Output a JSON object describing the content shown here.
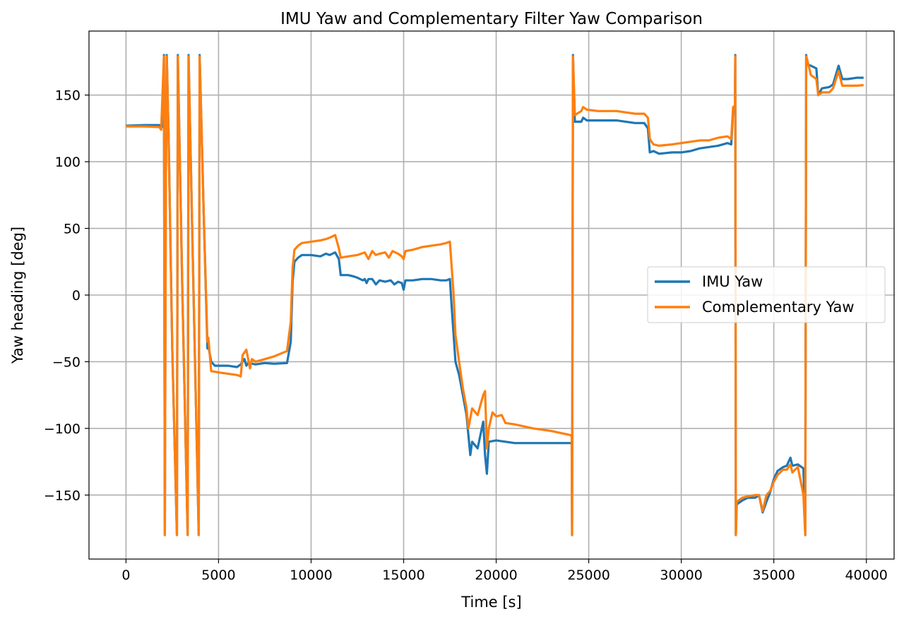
{
  "chart_data": {
    "type": "line",
    "title": "IMU Yaw and Complementary Filter Yaw Comparison",
    "xlabel": "Time [s]",
    "ylabel": "Yaw heading [deg]",
    "xlim": [
      -2000,
      41500
    ],
    "ylim": [
      -198,
      198
    ],
    "x_ticks": [
      0,
      5000,
      10000,
      15000,
      20000,
      25000,
      30000,
      35000,
      40000
    ],
    "x_tick_labels": [
      "0",
      "5000",
      "10000",
      "15000",
      "20000",
      "25000",
      "30000",
      "35000",
      "40000"
    ],
    "y_ticks": [
      -150,
      -100,
      -50,
      0,
      50,
      100,
      150
    ],
    "y_tick_labels": [
      "−150",
      "−100",
      "−50",
      "0",
      "50",
      "100",
      "150"
    ],
    "grid": true,
    "legend_position": "center-right",
    "series": [
      {
        "name": "IMU Yaw",
        "color": "#1f77b4",
        "points": [
          [
            0,
            127
          ],
          [
            1000,
            127.5
          ],
          [
            1800,
            127.5
          ],
          [
            2000,
            126
          ],
          [
            2050,
            180
          ],
          [
            2100,
            -180
          ],
          [
            2150,
            80
          ],
          [
            2200,
            180
          ],
          [
            2300,
            120
          ],
          [
            2500,
            -40
          ],
          [
            2750,
            -180
          ],
          [
            2800,
            180
          ],
          [
            3050,
            0
          ],
          [
            3330,
            -180
          ],
          [
            3380,
            180
          ],
          [
            3650,
            0
          ],
          [
            3930,
            -180
          ],
          [
            3980,
            180
          ],
          [
            4200,
            60
          ],
          [
            4400,
            -40
          ],
          [
            4450,
            -38
          ],
          [
            4600,
            -50
          ],
          [
            4800,
            -53
          ],
          [
            5500,
            -53
          ],
          [
            6000,
            -54
          ],
          [
            6200,
            -52
          ],
          [
            6400,
            -48
          ],
          [
            6500,
            -53
          ],
          [
            6600,
            -51
          ],
          [
            7000,
            -52
          ],
          [
            7500,
            -51
          ],
          [
            8000,
            -51.5
          ],
          [
            8700,
            -51
          ],
          [
            8900,
            -35
          ],
          [
            9000,
            10
          ],
          [
            9100,
            25
          ],
          [
            9300,
            28
          ],
          [
            9500,
            30
          ],
          [
            10000,
            30
          ],
          [
            10500,
            29
          ],
          [
            10800,
            31
          ],
          [
            11000,
            30
          ],
          [
            11300,
            32
          ],
          [
            11500,
            27
          ],
          [
            11600,
            15
          ],
          [
            12000,
            15
          ],
          [
            12300,
            14
          ],
          [
            12500,
            13
          ],
          [
            12800,
            11
          ],
          [
            12900,
            12
          ],
          [
            13000,
            9
          ],
          [
            13100,
            12
          ],
          [
            13300,
            12
          ],
          [
            13500,
            8
          ],
          [
            13700,
            11
          ],
          [
            14000,
            10
          ],
          [
            14300,
            11
          ],
          [
            14500,
            8
          ],
          [
            14700,
            10
          ],
          [
            14900,
            9
          ],
          [
            15000,
            4
          ],
          [
            15100,
            11
          ],
          [
            15500,
            11
          ],
          [
            16000,
            12
          ],
          [
            16500,
            12
          ],
          [
            17000,
            11
          ],
          [
            17300,
            11
          ],
          [
            17500,
            12
          ],
          [
            17600,
            -10
          ],
          [
            17700,
            -30
          ],
          [
            17800,
            -50
          ],
          [
            18000,
            -60
          ],
          [
            18200,
            -75
          ],
          [
            18400,
            -90
          ],
          [
            18500,
            -105
          ],
          [
            18600,
            -120
          ],
          [
            18700,
            -110
          ],
          [
            19000,
            -115
          ],
          [
            19300,
            -95
          ],
          [
            19400,
            -120
          ],
          [
            19500,
            -134
          ],
          [
            19600,
            -110
          ],
          [
            20000,
            -109
          ],
          [
            20500,
            -110
          ],
          [
            21000,
            -111
          ],
          [
            22000,
            -111
          ],
          [
            23000,
            -111
          ],
          [
            24000,
            -111
          ],
          [
            24080,
            -111
          ],
          [
            24100,
            -180
          ],
          [
            24150,
            180
          ],
          [
            24250,
            130
          ],
          [
            24600,
            130
          ],
          [
            24700,
            133
          ],
          [
            24900,
            131
          ],
          [
            25500,
            131
          ],
          [
            26000,
            131
          ],
          [
            26500,
            131
          ],
          [
            27000,
            130
          ],
          [
            27500,
            129
          ],
          [
            28000,
            129
          ],
          [
            28200,
            125
          ],
          [
            28300,
            107
          ],
          [
            28500,
            108
          ],
          [
            28800,
            106
          ],
          [
            29500,
            107
          ],
          [
            30000,
            107
          ],
          [
            30500,
            108
          ],
          [
            31000,
            110
          ],
          [
            31500,
            111
          ],
          [
            32000,
            112
          ],
          [
            32500,
            114
          ],
          [
            32700,
            113
          ],
          [
            32800,
            138
          ],
          [
            32900,
            139
          ],
          [
            32920,
            180
          ],
          [
            32950,
            -180
          ],
          [
            33000,
            -157
          ],
          [
            33300,
            -154
          ],
          [
            33600,
            -152
          ],
          [
            34000,
            -152
          ],
          [
            34200,
            -150
          ],
          [
            34400,
            -163
          ],
          [
            34600,
            -155
          ],
          [
            34800,
            -148
          ],
          [
            35000,
            -138
          ],
          [
            35200,
            -132
          ],
          [
            35500,
            -129
          ],
          [
            35700,
            -128
          ],
          [
            35900,
            -122
          ],
          [
            36000,
            -128
          ],
          [
            36300,
            -127
          ],
          [
            36600,
            -130
          ],
          [
            36700,
            -180
          ],
          [
            36750,
            180
          ],
          [
            36800,
            173
          ],
          [
            37000,
            172
          ],
          [
            37300,
            170
          ],
          [
            37400,
            150
          ],
          [
            37600,
            155
          ],
          [
            38000,
            156
          ],
          [
            38200,
            158
          ],
          [
            38500,
            172
          ],
          [
            38700,
            162
          ],
          [
            39000,
            162
          ],
          [
            39500,
            163
          ],
          [
            39850,
            163
          ]
        ]
      },
      {
        "name": "Complementary Yaw",
        "color": "#ff7f0e",
        "points": [
          [
            0,
            126.5
          ],
          [
            1000,
            126.5
          ],
          [
            1800,
            126
          ],
          [
            1900,
            124
          ],
          [
            2050,
            179
          ],
          [
            2100,
            -180
          ],
          [
            2150,
            80
          ],
          [
            2200,
            179
          ],
          [
            2300,
            120
          ],
          [
            2500,
            -40
          ],
          [
            2750,
            -180
          ],
          [
            2800,
            179
          ],
          [
            3050,
            0
          ],
          [
            3330,
            -180
          ],
          [
            3380,
            179
          ],
          [
            3650,
            0
          ],
          [
            3930,
            -180
          ],
          [
            3980,
            179
          ],
          [
            4200,
            60
          ],
          [
            4400,
            -35
          ],
          [
            4450,
            -32
          ],
          [
            4600,
            -57
          ],
          [
            5000,
            -58
          ],
          [
            5500,
            -59
          ],
          [
            6000,
            -60
          ],
          [
            6200,
            -61
          ],
          [
            6300,
            -45
          ],
          [
            6500,
            -41
          ],
          [
            6700,
            -55
          ],
          [
            6800,
            -48
          ],
          [
            7000,
            -50
          ],
          [
            7500,
            -48
          ],
          [
            8000,
            -46
          ],
          [
            8700,
            -42
          ],
          [
            8900,
            -20
          ],
          [
            9000,
            20
          ],
          [
            9100,
            34
          ],
          [
            9300,
            37
          ],
          [
            9500,
            39
          ],
          [
            10000,
            40
          ],
          [
            10500,
            41
          ],
          [
            10800,
            42
          ],
          [
            11000,
            43
          ],
          [
            11300,
            45
          ],
          [
            11500,
            35
          ],
          [
            11600,
            28
          ],
          [
            12000,
            29
          ],
          [
            12500,
            30
          ],
          [
            12900,
            32
          ],
          [
            13100,
            27
          ],
          [
            13300,
            33
          ],
          [
            13500,
            30
          ],
          [
            13700,
            31
          ],
          [
            14000,
            32
          ],
          [
            14200,
            28
          ],
          [
            14400,
            33
          ],
          [
            14700,
            31
          ],
          [
            14900,
            29
          ],
          [
            15000,
            27
          ],
          [
            15100,
            33
          ],
          [
            15500,
            34
          ],
          [
            16000,
            36
          ],
          [
            16500,
            37
          ],
          [
            17000,
            38
          ],
          [
            17300,
            39
          ],
          [
            17500,
            40
          ],
          [
            17600,
            20
          ],
          [
            17700,
            0
          ],
          [
            17800,
            -30
          ],
          [
            18000,
            -50
          ],
          [
            18200,
            -70
          ],
          [
            18400,
            -85
          ],
          [
            18500,
            -100
          ],
          [
            18700,
            -85
          ],
          [
            19000,
            -90
          ],
          [
            19300,
            -75
          ],
          [
            19400,
            -72
          ],
          [
            19500,
            -115
          ],
          [
            19600,
            -100
          ],
          [
            19800,
            -88
          ],
          [
            20000,
            -91
          ],
          [
            20300,
            -90
          ],
          [
            20500,
            -96
          ],
          [
            21000,
            -97
          ],
          [
            22000,
            -100
          ],
          [
            23000,
            -102
          ],
          [
            24000,
            -105
          ],
          [
            24080,
            -106
          ],
          [
            24100,
            -180
          ],
          [
            24150,
            179
          ],
          [
            24250,
            135
          ],
          [
            24600,
            138
          ],
          [
            24700,
            141
          ],
          [
            24900,
            139
          ],
          [
            25500,
            138
          ],
          [
            26000,
            138
          ],
          [
            26500,
            138
          ],
          [
            27000,
            137
          ],
          [
            27500,
            136
          ],
          [
            28000,
            136
          ],
          [
            28200,
            133
          ],
          [
            28300,
            117
          ],
          [
            28500,
            113
          ],
          [
            28800,
            112
          ],
          [
            29500,
            113
          ],
          [
            30000,
            114
          ],
          [
            30500,
            115
          ],
          [
            31000,
            116
          ],
          [
            31500,
            116
          ],
          [
            32000,
            118
          ],
          [
            32500,
            119
          ],
          [
            32700,
            117
          ],
          [
            32800,
            141
          ],
          [
            32900,
            142
          ],
          [
            32920,
            179
          ],
          [
            32950,
            -180
          ],
          [
            33000,
            -155
          ],
          [
            33300,
            -152
          ],
          [
            33600,
            -151
          ],
          [
            34000,
            -150
          ],
          [
            34200,
            -150
          ],
          [
            34400,
            -162
          ],
          [
            34600,
            -150
          ],
          [
            34800,
            -147
          ],
          [
            35000,
            -140
          ],
          [
            35200,
            -135
          ],
          [
            35500,
            -131
          ],
          [
            35700,
            -131
          ],
          [
            35900,
            -127
          ],
          [
            36000,
            -133
          ],
          [
            36300,
            -129
          ],
          [
            36600,
            -150
          ],
          [
            36700,
            -180
          ],
          [
            36750,
            179
          ],
          [
            36800,
            177
          ],
          [
            37000,
            165
          ],
          [
            37300,
            162
          ],
          [
            37400,
            150
          ],
          [
            37600,
            152
          ],
          [
            38000,
            152
          ],
          [
            38200,
            155
          ],
          [
            38500,
            168
          ],
          [
            38700,
            157
          ],
          [
            39000,
            157
          ],
          [
            39500,
            157
          ],
          [
            39850,
            157.5
          ]
        ]
      }
    ]
  }
}
